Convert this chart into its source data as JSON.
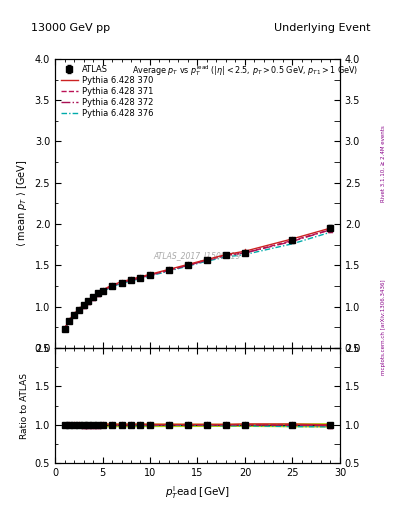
{
  "title_left": "13000 GeV pp",
  "title_right": "Underlying Event",
  "watermark": "ATLAS_2017_I1509919",
  "right_label1": "Rivet 3.1.10, ≥ 2.4M events",
  "right_label2": "mcplots.cern.ch [arXiv:1306.3436]",
  "xlim": [
    0,
    30
  ],
  "ylim_main": [
    0.5,
    4.0
  ],
  "ylim_ratio": [
    0.5,
    2.0
  ],
  "yticks_main": [
    0.5,
    1.0,
    1.5,
    2.0,
    2.5,
    3.0,
    3.5,
    4.0
  ],
  "yticks_ratio": [
    0.5,
    1.0,
    1.5,
    2.0
  ],
  "xticks": [
    0,
    5,
    10,
    15,
    20,
    25,
    30
  ],
  "atlas_x": [
    1.0,
    1.5,
    2.0,
    2.5,
    3.0,
    3.5,
    4.0,
    4.5,
    5.0,
    6.0,
    7.0,
    8.0,
    9.0,
    10.0,
    12.0,
    14.0,
    16.0,
    18.0,
    20.0,
    25.0,
    29.0
  ],
  "atlas_y": [
    0.73,
    0.83,
    0.9,
    0.96,
    1.02,
    1.07,
    1.11,
    1.16,
    1.19,
    1.25,
    1.29,
    1.32,
    1.35,
    1.38,
    1.44,
    1.5,
    1.56,
    1.62,
    1.65,
    1.8,
    1.95
  ],
  "atlas_yerr": [
    0.02,
    0.02,
    0.02,
    0.02,
    0.02,
    0.02,
    0.02,
    0.02,
    0.02,
    0.02,
    0.02,
    0.02,
    0.02,
    0.02,
    0.02,
    0.02,
    0.02,
    0.02,
    0.02,
    0.03,
    0.04
  ],
  "py370_x": [
    1.0,
    1.5,
    2.0,
    2.5,
    3.0,
    3.5,
    4.0,
    4.5,
    5.0,
    6.0,
    7.0,
    8.0,
    9.0,
    10.0,
    12.0,
    14.0,
    16.0,
    18.0,
    20.0,
    25.0,
    29.0
  ],
  "py370_y": [
    0.73,
    0.84,
    0.91,
    0.97,
    1.02,
    1.07,
    1.11,
    1.16,
    1.2,
    1.26,
    1.3,
    1.33,
    1.36,
    1.39,
    1.45,
    1.51,
    1.57,
    1.63,
    1.67,
    1.82,
    1.95
  ],
  "py371_x": [
    1.0,
    1.5,
    2.0,
    2.5,
    3.0,
    3.5,
    4.0,
    4.5,
    5.0,
    6.0,
    7.0,
    8.0,
    9.0,
    10.0,
    12.0,
    14.0,
    16.0,
    18.0,
    20.0,
    25.0,
    29.0
  ],
  "py371_y": [
    0.73,
    0.83,
    0.9,
    0.96,
    1.01,
    1.06,
    1.1,
    1.15,
    1.19,
    1.25,
    1.29,
    1.32,
    1.35,
    1.38,
    1.44,
    1.5,
    1.56,
    1.62,
    1.65,
    1.8,
    1.93
  ],
  "py372_x": [
    1.0,
    1.5,
    2.0,
    2.5,
    3.0,
    3.5,
    4.0,
    4.5,
    5.0,
    6.0,
    7.0,
    8.0,
    9.0,
    10.0,
    12.0,
    14.0,
    16.0,
    18.0,
    20.0,
    25.0,
    29.0
  ],
  "py372_y": [
    0.73,
    0.83,
    0.9,
    0.96,
    1.01,
    1.06,
    1.1,
    1.15,
    1.19,
    1.25,
    1.29,
    1.32,
    1.35,
    1.38,
    1.44,
    1.5,
    1.56,
    1.62,
    1.65,
    1.79,
    1.93
  ],
  "py376_x": [
    1.0,
    1.5,
    2.0,
    2.5,
    3.0,
    3.5,
    4.0,
    4.5,
    5.0,
    6.0,
    7.0,
    8.0,
    9.0,
    10.0,
    12.0,
    14.0,
    16.0,
    18.0,
    20.0,
    25.0,
    29.0
  ],
  "py376_y": [
    0.72,
    0.82,
    0.89,
    0.95,
    1.0,
    1.05,
    1.09,
    1.14,
    1.18,
    1.24,
    1.28,
    1.31,
    1.34,
    1.37,
    1.43,
    1.49,
    1.55,
    1.6,
    1.63,
    1.76,
    1.9
  ],
  "color_atlas": "#000000",
  "color_py370": "#cc2222",
  "color_py371": "#bb1155",
  "color_py372": "#aa1155",
  "color_py376": "#00aaaa",
  "color_band": "#aacc00",
  "legend_labels": [
    "ATLAS",
    "Pythia 6.428 370",
    "Pythia 6.428 371",
    "Pythia 6.428 372",
    "Pythia 6.428 376"
  ]
}
